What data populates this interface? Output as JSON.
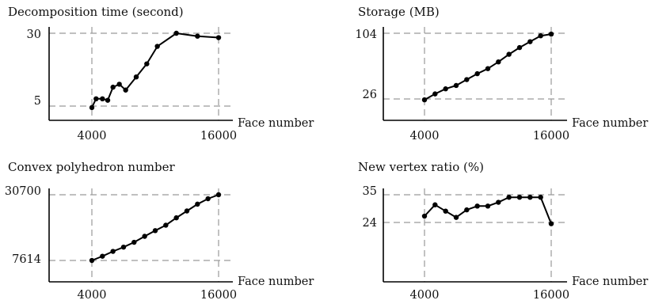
{
  "chart_data": [
    {
      "type": "line",
      "title": "Decomposition time (second)",
      "xlabel": "Face number",
      "ylabel": "",
      "x_ticks": [
        "4000",
        "16000"
      ],
      "y_ticks": [
        "5",
        "30"
      ],
      "y_tick_values": [
        5,
        30
      ],
      "xlim": [
        4000,
        16000
      ],
      "ylim": [
        5,
        30
      ],
      "grid": "dashed at tick values",
      "x": [
        4000,
        4400,
        5000,
        5500,
        6000,
        6600,
        7200,
        8200,
        9200,
        10200,
        12000,
        14000,
        16000
      ],
      "y": [
        4.5,
        7.5,
        7.5,
        7,
        11.5,
        12.5,
        10.5,
        15,
        19.5,
        25.5,
        30,
        29,
        28.5
      ]
    },
    {
      "type": "line",
      "title": "Storage (MB)",
      "xlabel": "Face number",
      "ylabel": "",
      "x_ticks": [
        "4000",
        "16000"
      ],
      "y_ticks": [
        "26",
        "104"
      ],
      "y_tick_values": [
        26,
        104
      ],
      "xlim": [
        4000,
        16000
      ],
      "ylim": [
        26,
        104
      ],
      "grid": "dashed at tick values",
      "x": [
        4000,
        5000,
        6000,
        7000,
        8000,
        9000,
        10000,
        11000,
        12000,
        13000,
        14000,
        15000,
        16000
      ],
      "y": [
        25,
        32,
        38,
        42,
        49,
        56,
        62,
        70,
        79,
        87,
        94,
        101,
        103
      ]
    },
    {
      "type": "line",
      "title": "Convex polyhedron number",
      "xlabel": "Face number",
      "ylabel": "",
      "x_ticks": [
        "4000",
        "16000"
      ],
      "y_ticks": [
        "7614",
        "30700"
      ],
      "y_tick_values": [
        7614,
        30700
      ],
      "xlim": [
        4000,
        16000
      ],
      "ylim": [
        7614,
        30700
      ],
      "grid": "dashed at tick values",
      "x": [
        4000,
        5000,
        6000,
        7000,
        8000,
        9000,
        10000,
        11000,
        12000,
        13000,
        14000,
        15000,
        16000
      ],
      "y": [
        7614,
        9100,
        10800,
        12300,
        14000,
        16100,
        18100,
        20000,
        22600,
        25000,
        27400,
        29300,
        30700
      ]
    },
    {
      "type": "line",
      "title": "New vertex ratio (%)",
      "xlabel": "Face number",
      "ylabel": "",
      "x_ticks": [
        "4000",
        "16000"
      ],
      "y_ticks": [
        "24",
        "35"
      ],
      "y_tick_values": [
        24,
        35
      ],
      "xlim": [
        4000,
        16000
      ],
      "ylim": [
        24,
        35
      ],
      "grid": "dashed at tick values",
      "x": [
        4000,
        5000,
        6000,
        7000,
        8000,
        9000,
        10000,
        11000,
        12000,
        13000,
        14000,
        15000,
        16000
      ],
      "y": [
        26.5,
        31,
        28.5,
        26,
        29,
        30.5,
        30.5,
        32,
        34,
        34,
        34,
        34,
        23.5
      ]
    }
  ]
}
